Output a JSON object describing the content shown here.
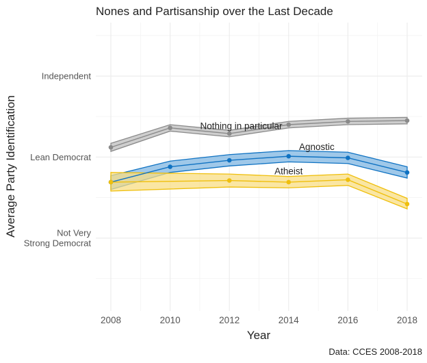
{
  "chart_data": {
    "type": "line",
    "title": "Nones and Partisanship over the Last Decade",
    "xlabel": "Year",
    "ylabel": "Average Party Identification",
    "caption": "Data: CCES 2008-2018",
    "xlim": [
      2007.5,
      2018.5
    ],
    "ylim": [
      1.1,
      4.66
    ],
    "x_ticks": [
      2008,
      2010,
      2012,
      2014,
      2016,
      2018
    ],
    "x_tick_labels": [
      "2008",
      "2010",
      "2012",
      "2014",
      "2016",
      "2018"
    ],
    "x_minor_ticks": [
      2009,
      2011,
      2013,
      2015,
      2017
    ],
    "y_ticks": [
      2,
      3,
      4
    ],
    "y_tick_labels": [
      [
        "Not Very",
        "Strong Democrat"
      ],
      [
        "Lean Democrat"
      ],
      [
        "Independent"
      ]
    ],
    "y_minor_ticks": [
      1.5,
      2.5,
      3.5,
      4.5
    ],
    "grid": true,
    "legend": "none (direct labels)",
    "series": [
      {
        "name": "Nothing in particular",
        "color": "#8a8a8a",
        "fill": "#bdbdbd",
        "x": [
          2008,
          2010,
          2012,
          2014,
          2016,
          2018
        ],
        "values": [
          3.12,
          3.36,
          3.29,
          3.4,
          3.44,
          3.45
        ],
        "lower": [
          3.07,
          3.32,
          3.25,
          3.36,
          3.4,
          3.41
        ],
        "upper": [
          3.17,
          3.4,
          3.33,
          3.44,
          3.48,
          3.49
        ],
        "label_at": [
          2012.4,
          3.38
        ]
      },
      {
        "name": "Agnostic",
        "color": "#0f72c2",
        "fill": "#7fb5e2",
        "x": [
          2008,
          2010,
          2012,
          2014,
          2016,
          2018
        ],
        "values": [
          2.69,
          2.88,
          2.96,
          3.01,
          2.99,
          2.81
        ],
        "lower": [
          2.6,
          2.81,
          2.89,
          2.94,
          2.92,
          2.74
        ],
        "upper": [
          2.77,
          2.95,
          3.03,
          3.08,
          3.06,
          2.88
        ],
        "label_at": [
          2014.95,
          3.12
        ]
      },
      {
        "name": "Atheist",
        "color": "#efbf0d",
        "fill": "#f8de84",
        "x": [
          2008,
          2012,
          2014,
          2016,
          2018
        ],
        "values": [
          2.69,
          2.71,
          2.69,
          2.72,
          2.42
        ],
        "lower": [
          2.58,
          2.63,
          2.62,
          2.65,
          2.36
        ],
        "upper": [
          2.81,
          2.79,
          2.76,
          2.79,
          2.49
        ],
        "label_at": [
          2014.0,
          2.82
        ]
      }
    ]
  }
}
